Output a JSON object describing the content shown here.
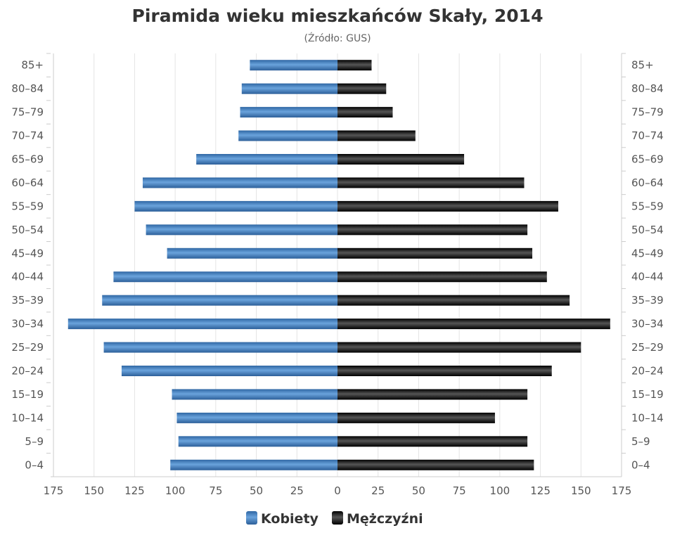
{
  "chart_data": {
    "type": "bar",
    "orientation": "horizontal-population-pyramid",
    "title": "Piramida wieku mieszkańców Skały, 2014",
    "subtitle": "(Źródło: GUS)",
    "categories": [
      "85+",
      "80–84",
      "75–79",
      "70–74",
      "65–69",
      "60–64",
      "55–59",
      "50–54",
      "45–49",
      "40–44",
      "35–39",
      "30–34",
      "25–29",
      "20–24",
      "15–19",
      "10–14",
      "5–9",
      "0–4"
    ],
    "series": [
      {
        "name": "Kobiety",
        "color": "#3a78b8",
        "values": [
          54,
          59,
          60,
          61,
          87,
          120,
          125,
          118,
          105,
          138,
          145,
          166,
          144,
          133,
          102,
          99,
          98,
          103
        ]
      },
      {
        "name": "Mężczyźni",
        "color": "#1a1a1a",
        "values": [
          21,
          30,
          34,
          48,
          78,
          115,
          136,
          117,
          120,
          129,
          143,
          168,
          150,
          132,
          117,
          97,
          117,
          121
        ]
      }
    ],
    "xticks": [
      "175",
      "150",
      "125",
      "100",
      "75",
      "50",
      "25",
      "0",
      "25",
      "50",
      "75",
      "100",
      "125",
      "150",
      "175"
    ],
    "xlim": [
      -175,
      175
    ],
    "grid": true,
    "legend_position": "bottom"
  }
}
